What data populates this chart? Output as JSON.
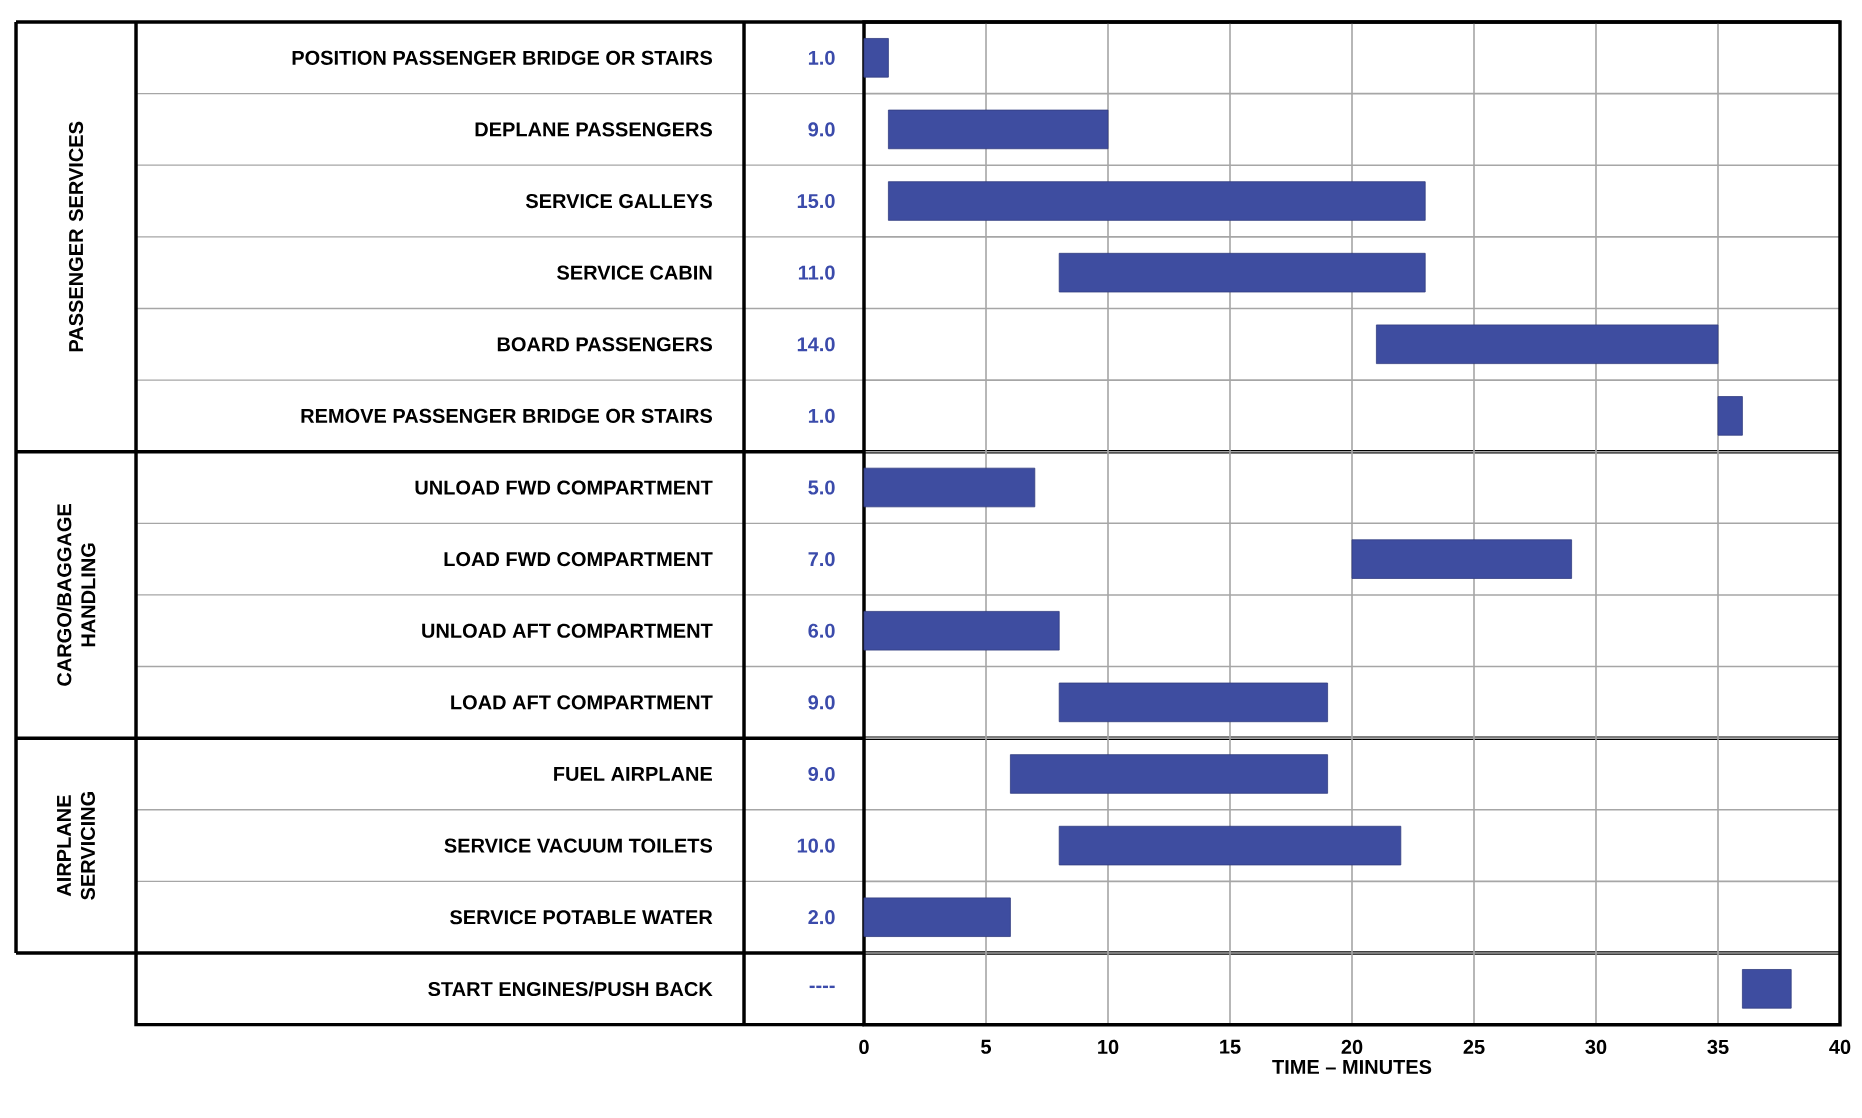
{
  "chart_data": {
    "type": "bar",
    "orientation": "horizontal",
    "xlabel": "TIME – MINUTES",
    "categories": [
      "POSITION PASSENGER BRIDGE OR STAIRS",
      "DEPLANE PASSENGERS",
      "SERVICE GALLEYS",
      "SERVICE CABIN",
      "BOARD PASSENGERS",
      "REMOVE PASSENGER BRIDGE OR STAIRS",
      "UNLOAD FWD COMPARTMENT",
      "LOAD FWD COMPARTMENT",
      "UNLOAD AFT COMPARTMENT",
      "LOAD AFT COMPARTMENT",
      "FUEL AIRPLANE",
      "SERVICE VACUUM TOILETS",
      "SERVICE POTABLE WATER",
      "START ENGINES/PUSH BACK"
    ],
    "base": [
      0,
      1,
      1,
      8,
      21,
      35,
      0,
      20,
      0,
      8,
      6,
      8,
      0,
      36
    ],
    "values": [
      1,
      9,
      22,
      15,
      14,
      1,
      7,
      9,
      8,
      11,
      13,
      14,
      6,
      2
    ],
    "color": "#3e4da0",
    "xlim": [
      0,
      40
    ],
    "xticks": [
      0,
      5,
      10,
      15,
      20,
      25,
      30,
      35,
      40
    ],
    "grid": true,
    "annotations": [
      "PASSENGER SERVICES",
      "CARGO/BAGGAGE HANDLING",
      "AIRPLANE SERVICING",
      "1.0",
      "9.0",
      "15.0",
      "11.0",
      "14.0",
      "1.0",
      "5.0",
      "7.0",
      "6.0",
      "9.0",
      "9.0",
      "10.0",
      "2.0",
      "----"
    ]
  }
}
